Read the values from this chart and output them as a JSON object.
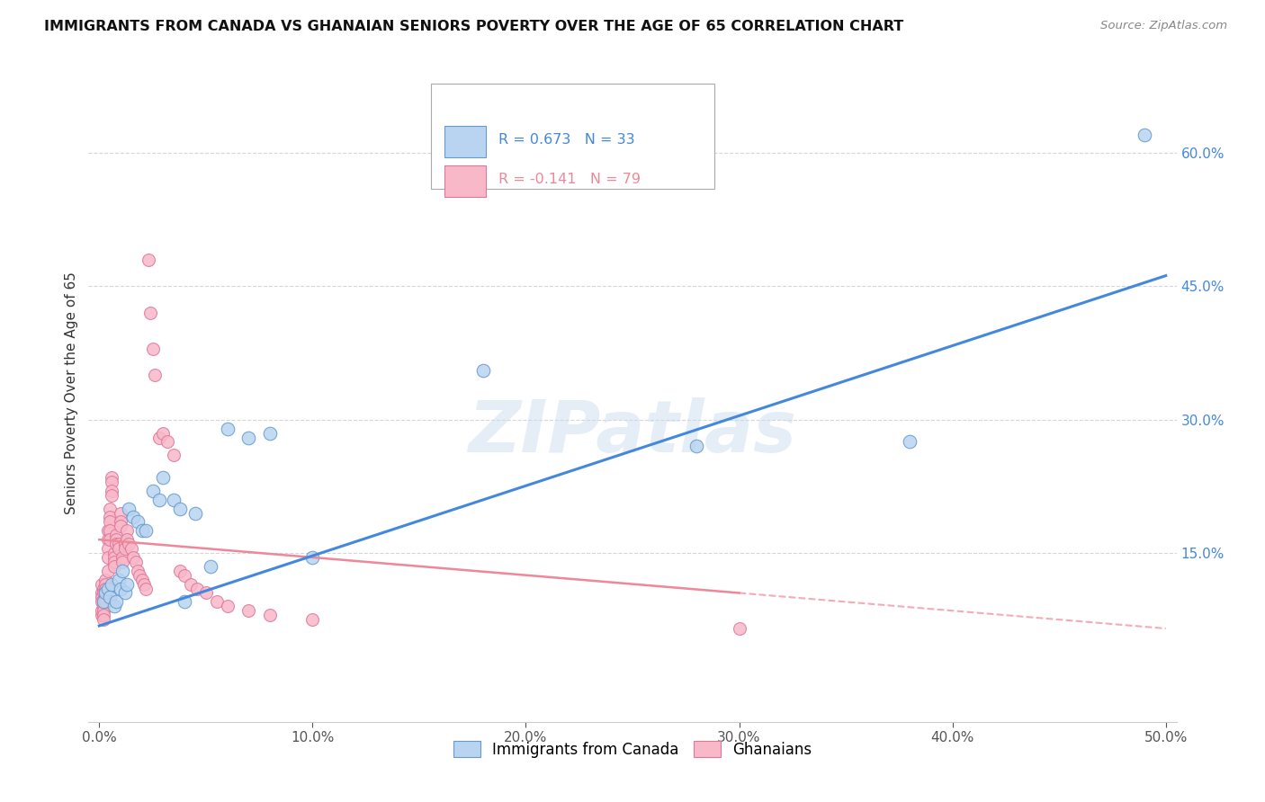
{
  "title": "IMMIGRANTS FROM CANADA VS GHANAIAN SENIORS POVERTY OVER THE AGE OF 65 CORRELATION CHART",
  "source": "Source: ZipAtlas.com",
  "ylabel": "Seniors Poverty Over the Age of 65",
  "xlim": [
    -0.005,
    0.505
  ],
  "ylim": [
    -0.04,
    0.7
  ],
  "xticks": [
    0.0,
    0.1,
    0.2,
    0.3,
    0.4,
    0.5
  ],
  "xticklabels": [
    "0.0%",
    "10.0%",
    "20.0%",
    "30.0%",
    "40.0%",
    "50.0%"
  ],
  "yticks_right": [
    0.15,
    0.3,
    0.45,
    0.6
  ],
  "ytick_labels_right": [
    "15.0%",
    "30.0%",
    "45.0%",
    "60.0%"
  ],
  "R_blue": 0.673,
  "N_blue": 33,
  "R_pink": -0.141,
  "N_pink": 79,
  "legend_label_blue": "Immigrants from Canada",
  "legend_label_pink": "Ghanaians",
  "watermark": "ZIPatlas",
  "blue_color": "#b8d4f0",
  "blue_edge_color": "#6699cc",
  "blue_line_color": "#4488dd",
  "pink_color": "#f8b8c8",
  "pink_edge_color": "#dd7799",
  "pink_line_color": "#ee8899",
  "background_color": "#ffffff",
  "grid_color": "#cccccc",
  "blue_dots_x": [
    0.002,
    0.003,
    0.004,
    0.005,
    0.006,
    0.007,
    0.008,
    0.009,
    0.01,
    0.011,
    0.012,
    0.013,
    0.014,
    0.016,
    0.018,
    0.02,
    0.022,
    0.025,
    0.028,
    0.03,
    0.035,
    0.038,
    0.04,
    0.045,
    0.052,
    0.06,
    0.07,
    0.08,
    0.1,
    0.18,
    0.28,
    0.38,
    0.49
  ],
  "blue_dots_y": [
    0.095,
    0.105,
    0.11,
    0.1,
    0.115,
    0.09,
    0.095,
    0.12,
    0.11,
    0.13,
    0.105,
    0.115,
    0.2,
    0.19,
    0.185,
    0.175,
    0.175,
    0.22,
    0.21,
    0.235,
    0.21,
    0.2,
    0.095,
    0.195,
    0.135,
    0.29,
    0.28,
    0.285,
    0.145,
    0.355,
    0.27,
    0.275,
    0.62
  ],
  "pink_dots_x": [
    0.001,
    0.001,
    0.001,
    0.001,
    0.001,
    0.001,
    0.002,
    0.002,
    0.002,
    0.002,
    0.002,
    0.002,
    0.002,
    0.003,
    0.003,
    0.003,
    0.003,
    0.003,
    0.003,
    0.004,
    0.004,
    0.004,
    0.004,
    0.004,
    0.005,
    0.005,
    0.005,
    0.005,
    0.005,
    0.006,
    0.006,
    0.006,
    0.006,
    0.007,
    0.007,
    0.007,
    0.007,
    0.008,
    0.008,
    0.008,
    0.009,
    0.009,
    0.01,
    0.01,
    0.01,
    0.011,
    0.011,
    0.012,
    0.012,
    0.013,
    0.013,
    0.014,
    0.015,
    0.016,
    0.017,
    0.018,
    0.019,
    0.02,
    0.021,
    0.022,
    0.023,
    0.024,
    0.025,
    0.026,
    0.028,
    0.03,
    0.032,
    0.035,
    0.038,
    0.04,
    0.043,
    0.046,
    0.05,
    0.055,
    0.06,
    0.07,
    0.08,
    0.1,
    0.3
  ],
  "pink_dots_y": [
    0.105,
    0.115,
    0.1,
    0.095,
    0.08,
    0.085,
    0.11,
    0.105,
    0.095,
    0.09,
    0.085,
    0.08,
    0.075,
    0.12,
    0.115,
    0.11,
    0.105,
    0.1,
    0.095,
    0.175,
    0.165,
    0.155,
    0.145,
    0.13,
    0.2,
    0.19,
    0.185,
    0.175,
    0.165,
    0.235,
    0.23,
    0.22,
    0.215,
    0.15,
    0.145,
    0.14,
    0.135,
    0.17,
    0.165,
    0.16,
    0.16,
    0.155,
    0.195,
    0.185,
    0.18,
    0.145,
    0.14,
    0.16,
    0.155,
    0.175,
    0.165,
    0.16,
    0.155,
    0.145,
    0.14,
    0.13,
    0.125,
    0.12,
    0.115,
    0.11,
    0.48,
    0.42,
    0.38,
    0.35,
    0.28,
    0.285,
    0.275,
    0.26,
    0.13,
    0.125,
    0.115,
    0.11,
    0.105,
    0.095,
    0.09,
    0.085,
    0.08,
    0.075,
    0.065
  ],
  "blue_line_x": [
    0.0,
    0.5
  ],
  "blue_line_y": [
    0.068,
    0.462
  ],
  "pink_line_x": [
    0.0,
    0.5
  ],
  "pink_line_y": [
    0.165,
    0.065
  ],
  "pink_line_dash_start": 0.3
}
